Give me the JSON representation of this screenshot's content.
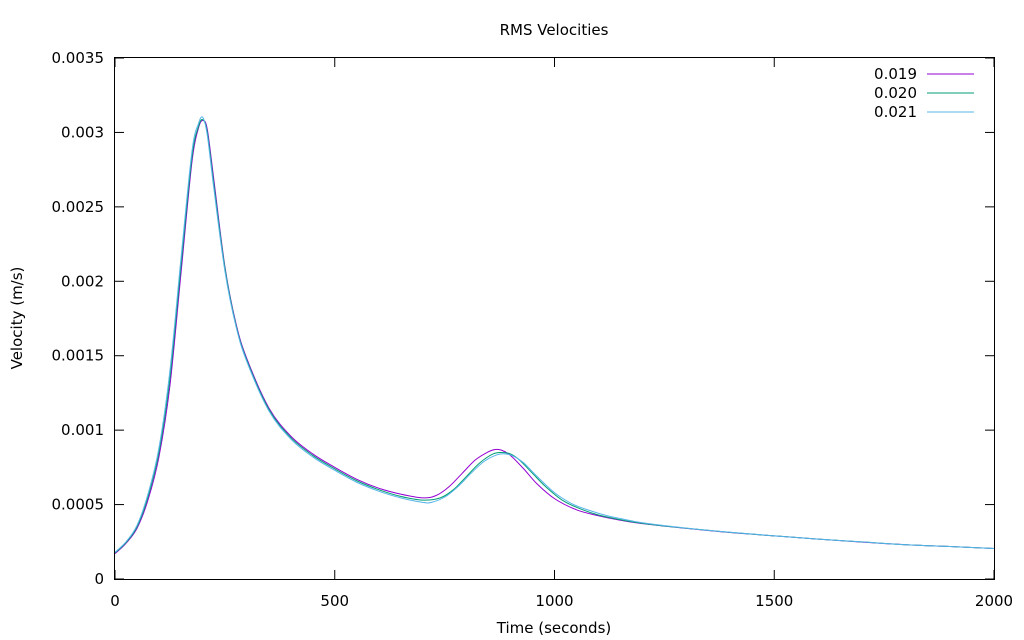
{
  "chart_data": {
    "type": "line",
    "title": "RMS Velocities",
    "xlabel": "Time (seconds)",
    "ylabel": "Velocity (m/s)",
    "xlim": [
      0,
      2000
    ],
    "ylim": [
      0,
      0.0035
    ],
    "xticks": [
      "0",
      "500",
      "1000",
      "1500",
      "2000"
    ],
    "yticks": [
      "0",
      "0.0005",
      "0.001",
      "0.0015",
      "0.002",
      "0.0025",
      "0.003",
      "0.0035"
    ],
    "grid": false,
    "legend_position": "top-right",
    "series": [
      {
        "name": "0.019",
        "color": "#9400d3",
        "x": [
          0,
          25,
          50,
          75,
          100,
          125,
          150,
          175,
          190,
          200,
          210,
          225,
          250,
          275,
          300,
          350,
          400,
          450,
          500,
          550,
          600,
          650,
          700,
          730,
          760,
          790,
          820,
          850,
          865,
          880,
          900,
          930,
          960,
          1000,
          1050,
          1100,
          1150,
          1200,
          1300,
          1400,
          1500,
          1600,
          1700,
          1800,
          1900,
          2000
        ],
        "y": [
          0.00017,
          0.00024,
          0.00034,
          0.00053,
          0.00082,
          0.0013,
          0.00205,
          0.0028,
          0.00303,
          0.00308,
          0.00302,
          0.00268,
          0.0021,
          0.00172,
          0.00148,
          0.00115,
          0.00096,
          0.00084,
          0.00075,
          0.00067,
          0.00061,
          0.00057,
          0.000545,
          0.00056,
          0.00062,
          0.00071,
          0.0008,
          0.000855,
          0.00087,
          0.000865,
          0.00083,
          0.00074,
          0.00064,
          0.00054,
          0.000465,
          0.000425,
          0.000395,
          0.000372,
          0.00034,
          0.000312,
          0.00029,
          0.000268,
          0.000248,
          0.00023,
          0.000218,
          0.000205
        ]
      },
      {
        "name": "0.020",
        "color": "#009e73",
        "x": [
          0,
          25,
          50,
          75,
          100,
          125,
          150,
          175,
          190,
          200,
          210,
          225,
          250,
          275,
          300,
          350,
          400,
          450,
          500,
          550,
          600,
          650,
          700,
          740,
          770,
          800,
          830,
          860,
          880,
          900,
          920,
          950,
          980,
          1020,
          1060,
          1100,
          1150,
          1200,
          1300,
          1400,
          1500,
          1600,
          1700,
          1800,
          1900,
          2000
        ],
        "y": [
          0.000175,
          0.000245,
          0.00035,
          0.00055,
          0.00085,
          0.00135,
          0.0021,
          0.00283,
          0.00304,
          0.003085,
          0.003,
          0.00265,
          0.00209,
          0.00171,
          0.00147,
          0.00114,
          0.00095,
          0.00083,
          0.00074,
          0.00066,
          0.0006,
          0.000555,
          0.00053,
          0.000545,
          0.0006,
          0.00069,
          0.00078,
          0.00084,
          0.00085,
          0.00084,
          0.0008,
          0.00071,
          0.00062,
          0.000525,
          0.00047,
          0.00043,
          0.000398,
          0.000374,
          0.000341,
          0.000313,
          0.00029,
          0.000268,
          0.000249,
          0.00023,
          0.000218,
          0.000205
        ]
      },
      {
        "name": "0.021",
        "color": "#56b4e9",
        "x": [
          0,
          25,
          50,
          75,
          100,
          125,
          150,
          175,
          190,
          200,
          210,
          225,
          250,
          275,
          300,
          350,
          400,
          450,
          500,
          550,
          600,
          650,
          700,
          720,
          750,
          780,
          810,
          840,
          870,
          890,
          910,
          930,
          960,
          1000,
          1040,
          1080,
          1120,
          1160,
          1200,
          1300,
          1400,
          1500,
          1600,
          1700,
          1800,
          1900,
          2000
        ],
        "y": [
          0.00018,
          0.00025,
          0.00036,
          0.00057,
          0.00088,
          0.0014,
          0.00215,
          0.00287,
          0.00306,
          0.0031,
          0.00298,
          0.00262,
          0.00207,
          0.0017,
          0.00146,
          0.00113,
          0.00094,
          0.00082,
          0.00073,
          0.00065,
          0.00059,
          0.000545,
          0.000515,
          0.000515,
          0.00055,
          0.00062,
          0.00071,
          0.00079,
          0.000835,
          0.00084,
          0.00082,
          0.00078,
          0.00069,
          0.00058,
          0.000505,
          0.00046,
          0.000425,
          0.0004,
          0.000378,
          0.000342,
          0.000314,
          0.00029,
          0.000268,
          0.000249,
          0.00023,
          0.000218,
          0.000205
        ]
      }
    ]
  }
}
